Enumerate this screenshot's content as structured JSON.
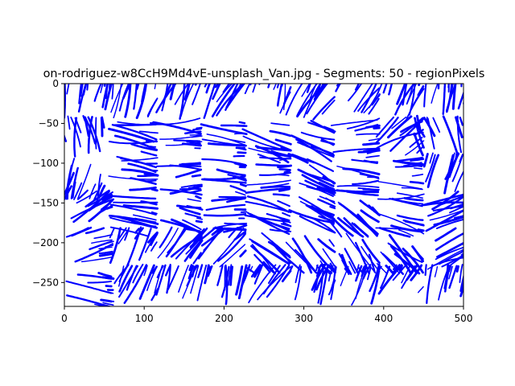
{
  "chart_data": {
    "type": "streamplot",
    "title": "on-rodriguez-w8CcH9Md4vE-unsplash_Van.jpg - Segments: 50 - regionPixels",
    "xlabel": "",
    "ylabel": "",
    "xlim": [
      0,
      500
    ],
    "ylim": [
      -280,
      0
    ],
    "x_ticks": [
      0,
      100,
      200,
      300,
      400,
      500
    ],
    "y_ticks": [
      0,
      -50,
      -100,
      -150,
      -200,
      -250
    ],
    "grid": false,
    "legend": "none",
    "line_color": "#0000ff",
    "segment_grid": {
      "columns": 9,
      "rows": 6
    },
    "segments_count": 50,
    "region_flow_angles_deg": [
      [
        -80,
        -75,
        -70,
        -65,
        -75,
        -60,
        -55,
        -70,
        -80
      ],
      [
        -100,
        10,
        0,
        5,
        15,
        20,
        -10,
        -40,
        -110
      ],
      [
        110,
        5,
        -5,
        10,
        -5,
        25,
        5,
        0,
        -70
      ],
      [
        -30,
        10,
        15,
        -5,
        20,
        30,
        40,
        10,
        -20
      ],
      [
        -15,
        -60,
        -50,
        -45,
        40,
        50,
        60,
        45,
        -30
      ],
      [
        10,
        -65,
        -70,
        -80,
        -60,
        -75,
        -70,
        -55,
        -80
      ]
    ]
  }
}
